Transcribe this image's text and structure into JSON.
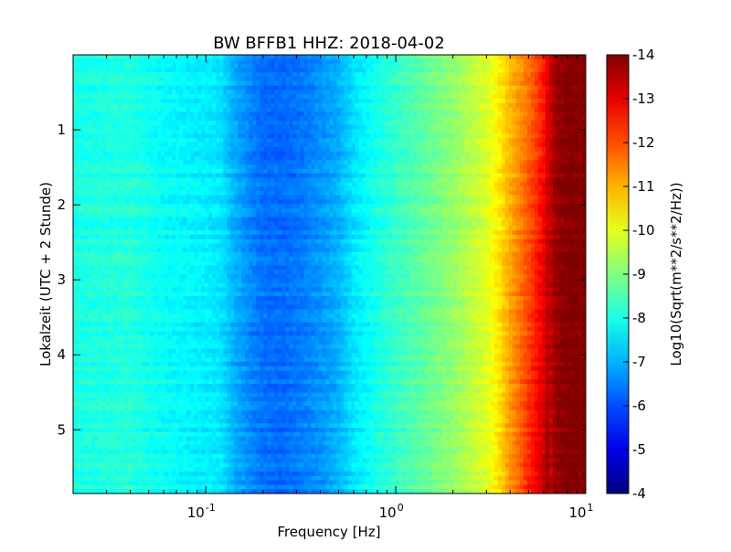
{
  "chart_data": {
    "type": "heatmap",
    "title": "BW BFFB1 HHZ: 2018-04-02",
    "xlabel": "Frequency [Hz]",
    "ylabel": "Lokalzeit (UTC + 2 Stunde)",
    "x_scale": "log",
    "x_range": [
      0.02,
      10
    ],
    "x_ticks": [
      {
        "value": 0.1,
        "base": "10",
        "exp": "-1"
      },
      {
        "value": 1,
        "base": "10",
        "exp": "0"
      },
      {
        "value": 10,
        "base": "10",
        "exp": "1"
      }
    ],
    "y_range": [
      0,
      5.85
    ],
    "y_inverted": true,
    "y_ticks": [
      {
        "value": 1,
        "label": "1"
      },
      {
        "value": 2,
        "label": "2"
      },
      {
        "value": 3,
        "label": "3"
      },
      {
        "value": 4,
        "label": "4"
      },
      {
        "value": 5,
        "label": "5"
      }
    ],
    "colormap": "jet",
    "colorbar": {
      "label": "Log10(Sqrt(m**2/s**2/Hz))",
      "range": [
        -14,
        -4
      ],
      "ticks": [
        {
          "value": -4,
          "label": "-4"
        },
        {
          "value": -5,
          "label": "-5"
        },
        {
          "value": -6,
          "label": "-6"
        },
        {
          "value": -7,
          "label": "-7"
        },
        {
          "value": -8,
          "label": "-8"
        },
        {
          "value": -9,
          "label": "-9"
        },
        {
          "value": -10,
          "label": "-10"
        },
        {
          "value": -11,
          "label": "-11"
        },
        {
          "value": -12,
          "label": "-12"
        },
        {
          "value": -13,
          "label": "-13"
        },
        {
          "value": -14,
          "label": "-14"
        }
      ]
    },
    "spectrum_profile": {
      "frequency_hz": [
        0.02,
        0.04,
        0.06,
        0.08,
        0.1,
        0.12,
        0.14,
        0.17,
        0.2,
        0.25,
        0.3,
        0.4,
        0.5,
        0.6,
        0.8,
        1.0,
        1.3,
        1.6,
        2.0,
        2.5,
        3.0,
        3.5,
        4.0,
        5.0,
        6.0,
        6.5,
        7.0,
        8.0,
        10.0
      ],
      "log10_psd": [
        -8.0,
        -8.1,
        -7.8,
        -7.7,
        -7.6,
        -7.5,
        -7.0,
        -6.6,
        -6.35,
        -6.3,
        -6.4,
        -6.7,
        -7.0,
        -7.5,
        -8.0,
        -8.3,
        -8.6,
        -8.9,
        -9.2,
        -9.6,
        -9.9,
        -10.4,
        -10.9,
        -11.6,
        -12.5,
        -13.3,
        -13.8,
        -14.0,
        -14.0
      ]
    }
  }
}
